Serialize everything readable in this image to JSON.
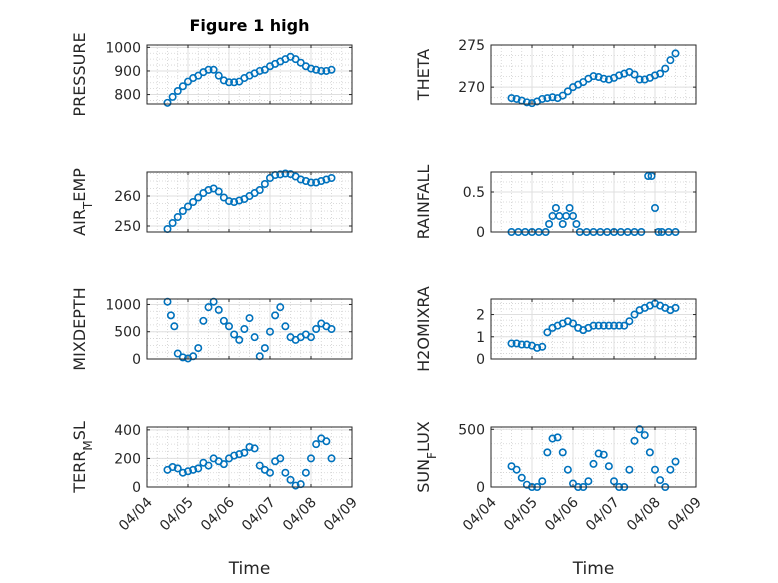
{
  "figure": {
    "title": "Figure 1 high",
    "marker_color": "#0072bd",
    "xlabel": "Time"
  },
  "chart_data": [
    {
      "type": "scatter",
      "title": "Figure 1 high",
      "ylabel": "PRESSURE",
      "xlim": [
        "04/04",
        "04/09"
      ],
      "ylim": [
        760,
        1010
      ],
      "yticks": [
        800,
        900,
        1000
      ],
      "xticks": [
        "04/04",
        "04/05",
        "04/06",
        "04/07",
        "04/08",
        "04/09"
      ],
      "show_xticklabels": false,
      "grid": true,
      "series": [
        {
          "x": [
            "04/04 12:00",
            "04/04 15:00",
            "04/04 18:00",
            "04/04 21:00",
            "04/05 00:00",
            "04/05 03:00",
            "04/05 06:00",
            "04/05 09:00",
            "04/05 12:00",
            "04/05 15:00",
            "04/05 18:00",
            "04/05 21:00",
            "04/06 00:00",
            "04/06 03:00",
            "04/06 06:00",
            "04/06 09:00",
            "04/06 12:00",
            "04/06 15:00",
            "04/06 18:00",
            "04/06 21:00",
            "04/07 00:00",
            "04/07 03:00",
            "04/07 06:00",
            "04/07 09:00",
            "04/07 12:00",
            "04/07 15:00",
            "04/07 18:00",
            "04/07 21:00",
            "04/08 00:00",
            "04/08 03:00",
            "04/08 06:00",
            "04/08 09:00",
            "04/08 12:00"
          ],
          "y": [
            765,
            790,
            815,
            835,
            855,
            870,
            880,
            895,
            905,
            905,
            880,
            860,
            852,
            852,
            855,
            870,
            880,
            890,
            900,
            905,
            920,
            930,
            940,
            950,
            960,
            950,
            935,
            920,
            910,
            905,
            900,
            900,
            905
          ]
        }
      ]
    },
    {
      "type": "scatter",
      "ylabel": "THETA",
      "xlim": [
        "04/04",
        "04/09"
      ],
      "ylim": [
        268,
        275
      ],
      "yticks": [
        270,
        275
      ],
      "xticks": [
        "04/04",
        "04/05",
        "04/06",
        "04/07",
        "04/08",
        "04/09"
      ],
      "show_xticklabels": false,
      "grid": true,
      "series": [
        {
          "x": [
            "04/04 12:00",
            "04/04 15:00",
            "04/04 18:00",
            "04/04 21:00",
            "04/05 00:00",
            "04/05 03:00",
            "04/05 06:00",
            "04/05 09:00",
            "04/05 12:00",
            "04/05 15:00",
            "04/05 18:00",
            "04/05 21:00",
            "04/06 00:00",
            "04/06 03:00",
            "04/06 06:00",
            "04/06 09:00",
            "04/06 12:00",
            "04/06 15:00",
            "04/06 18:00",
            "04/06 21:00",
            "04/07 00:00",
            "04/07 03:00",
            "04/07 06:00",
            "04/07 09:00",
            "04/07 12:00",
            "04/07 15:00",
            "04/07 18:00",
            "04/07 21:00",
            "04/08 00:00",
            "04/08 03:00",
            "04/08 06:00",
            "04/08 09:00",
            "04/08 12:00"
          ],
          "y": [
            268.7,
            268.6,
            268.4,
            268.2,
            268.1,
            268.3,
            268.6,
            268.7,
            268.8,
            268.7,
            269.0,
            269.5,
            270.0,
            270.3,
            270.6,
            271.0,
            271.3,
            271.2,
            271.0,
            270.9,
            271.1,
            271.4,
            271.6,
            271.8,
            271.5,
            270.9,
            270.9,
            271.1,
            271.4,
            271.6,
            272.2,
            273.2,
            274.0
          ]
        }
      ]
    },
    {
      "type": "scatter",
      "ylabel": "AIR_TEMP",
      "xlim": [
        "04/04",
        "04/09"
      ],
      "ylim": [
        248,
        268
      ],
      "yticks": [
        250,
        260
      ],
      "xticks": [
        "04/04",
        "04/05",
        "04/06",
        "04/07",
        "04/08",
        "04/09"
      ],
      "show_xticklabels": false,
      "grid": true,
      "series": [
        {
          "x": [
            "04/04 12:00",
            "04/04 15:00",
            "04/04 18:00",
            "04/04 21:00",
            "04/05 00:00",
            "04/05 03:00",
            "04/05 06:00",
            "04/05 09:00",
            "04/05 12:00",
            "04/05 15:00",
            "04/05 18:00",
            "04/05 21:00",
            "04/06 00:00",
            "04/06 03:00",
            "04/06 06:00",
            "04/06 09:00",
            "04/06 12:00",
            "04/06 15:00",
            "04/06 18:00",
            "04/06 21:00",
            "04/07 00:00",
            "04/07 03:00",
            "04/07 06:00",
            "04/07 09:00",
            "04/07 12:00",
            "04/07 15:00",
            "04/07 18:00",
            "04/07 21:00",
            "04/08 00:00",
            "04/08 03:00",
            "04/08 06:00",
            "04/08 09:00",
            "04/08 12:00"
          ],
          "y": [
            249,
            251,
            253,
            255,
            256.5,
            258,
            259.5,
            261,
            262,
            262.5,
            261.5,
            259.5,
            258.3,
            258,
            258.5,
            259,
            260,
            261,
            262,
            264,
            266,
            267,
            267.2,
            267.5,
            267.3,
            266.5,
            265.5,
            265,
            264.5,
            264.5,
            265,
            265.5,
            266
          ]
        }
      ]
    },
    {
      "type": "scatter",
      "ylabel": "RAINFALL",
      "xlim": [
        "04/04",
        "04/09"
      ],
      "ylim": [
        0,
        0.75
      ],
      "yticks": [
        0,
        0.5
      ],
      "xticks": [
        "04/04",
        "04/05",
        "04/06",
        "04/07",
        "04/08",
        "04/09"
      ],
      "show_xticklabels": false,
      "grid": true,
      "series": [
        {
          "x": [
            "04/04 12:00",
            "04/04 16:00",
            "04/04 20:00",
            "04/05 00:00",
            "04/05 04:00",
            "04/05 08:00",
            "04/05 10:00",
            "04/05 12:00",
            "04/05 14:00",
            "04/05 16:00",
            "04/05 18:00",
            "04/05 20:00",
            "04/05 22:00",
            "04/06 00:00",
            "04/06 02:00",
            "04/06 04:00",
            "04/06 08:00",
            "04/06 12:00",
            "04/06 16:00",
            "04/06 20:00",
            "04/07 00:00",
            "04/07 04:00",
            "04/07 08:00",
            "04/07 12:00",
            "04/07 16:00",
            "04/07 20:00",
            "04/07 22:00",
            "04/08 00:00",
            "04/08 02:00",
            "04/08 04:00",
            "04/08 08:00",
            "04/08 12:00"
          ],
          "y": [
            0,
            0,
            0,
            0,
            0,
            0,
            0.1,
            0.2,
            0.3,
            0.2,
            0.1,
            0.2,
            0.3,
            0.2,
            0.1,
            0,
            0,
            0,
            0,
            0,
            0,
            0,
            0,
            0,
            0,
            0.7,
            0.7,
            0.3,
            0,
            0,
            0,
            0
          ]
        }
      ]
    },
    {
      "type": "scatter",
      "ylabel": "MIXDEPTH",
      "xlim": [
        "04/04",
        "04/09"
      ],
      "ylim": [
        0,
        1100
      ],
      "yticks": [
        0,
        500,
        1000
      ],
      "xticks": [
        "04/04",
        "04/05",
        "04/06",
        "04/07",
        "04/08",
        "04/09"
      ],
      "show_xticklabels": false,
      "grid": true,
      "series": [
        {
          "x": [
            "04/04 12:00",
            "04/04 14:00",
            "04/04 16:00",
            "04/04 18:00",
            "04/04 21:00",
            "04/05 00:00",
            "04/05 03:00",
            "04/05 06:00",
            "04/05 09:00",
            "04/05 12:00",
            "04/05 15:00",
            "04/05 18:00",
            "04/05 21:00",
            "04/06 00:00",
            "04/06 03:00",
            "04/06 06:00",
            "04/06 09:00",
            "04/06 12:00",
            "04/06 15:00",
            "04/06 18:00",
            "04/06 21:00",
            "04/07 00:00",
            "04/07 03:00",
            "04/07 06:00",
            "04/07 09:00",
            "04/07 12:00",
            "04/07 15:00",
            "04/07 18:00",
            "04/07 21:00",
            "04/08 00:00",
            "04/08 03:00",
            "04/08 06:00",
            "04/08 09:00",
            "04/08 12:00"
          ],
          "y": [
            1050,
            800,
            600,
            100,
            30,
            10,
            50,
            200,
            700,
            950,
            1050,
            900,
            700,
            600,
            450,
            350,
            550,
            750,
            400,
            50,
            200,
            500,
            800,
            950,
            600,
            400,
            350,
            400,
            450,
            400,
            550,
            650,
            600,
            550
          ]
        }
      ]
    },
    {
      "type": "scatter",
      "ylabel": "H2OMIXRA",
      "xlim": [
        "04/04",
        "04/09"
      ],
      "ylim": [
        0,
        2.7
      ],
      "yticks": [
        0,
        1,
        2
      ],
      "xticks": [
        "04/04",
        "04/05",
        "04/06",
        "04/07",
        "04/08",
        "04/09"
      ],
      "show_xticklabels": false,
      "grid": true,
      "series": [
        {
          "x": [
            "04/04 12:00",
            "04/04 15:00",
            "04/04 18:00",
            "04/04 21:00",
            "04/05 00:00",
            "04/05 03:00",
            "04/05 06:00",
            "04/05 09:00",
            "04/05 12:00",
            "04/05 15:00",
            "04/05 18:00",
            "04/05 21:00",
            "04/06 00:00",
            "04/06 03:00",
            "04/06 06:00",
            "04/06 09:00",
            "04/06 12:00",
            "04/06 15:00",
            "04/06 18:00",
            "04/06 21:00",
            "04/07 00:00",
            "04/07 03:00",
            "04/07 06:00",
            "04/07 09:00",
            "04/07 12:00",
            "04/07 15:00",
            "04/07 18:00",
            "04/07 21:00",
            "04/08 00:00",
            "04/08 03:00",
            "04/08 06:00",
            "04/08 09:00",
            "04/08 12:00"
          ],
          "y": [
            0.7,
            0.7,
            0.65,
            0.65,
            0.6,
            0.5,
            0.55,
            1.2,
            1.4,
            1.5,
            1.6,
            1.7,
            1.6,
            1.4,
            1.3,
            1.4,
            1.5,
            1.5,
            1.5,
            1.5,
            1.5,
            1.5,
            1.5,
            1.7,
            2.0,
            2.2,
            2.3,
            2.4,
            2.5,
            2.4,
            2.3,
            2.2,
            2.3
          ]
        }
      ]
    },
    {
      "type": "scatter",
      "ylabel": "TERR_MSL",
      "xlim": [
        "04/04",
        "04/09"
      ],
      "ylim": [
        0,
        420
      ],
      "yticks": [
        0,
        200,
        400
      ],
      "xticks": [
        "04/04",
        "04/05",
        "04/06",
        "04/07",
        "04/08",
        "04/09"
      ],
      "show_xticklabels": true,
      "grid": true,
      "series": [
        {
          "x": [
            "04/04 12:00",
            "04/04 15:00",
            "04/04 18:00",
            "04/04 21:00",
            "04/05 00:00",
            "04/05 03:00",
            "04/05 06:00",
            "04/05 09:00",
            "04/05 12:00",
            "04/05 15:00",
            "04/05 18:00",
            "04/05 21:00",
            "04/06 00:00",
            "04/06 03:00",
            "04/06 06:00",
            "04/06 09:00",
            "04/06 12:00",
            "04/06 15:00",
            "04/06 18:00",
            "04/06 21:00",
            "04/07 00:00",
            "04/07 03:00",
            "04/07 06:00",
            "04/07 09:00",
            "04/07 12:00",
            "04/07 15:00",
            "04/07 18:00",
            "04/07 21:00",
            "04/08 00:00",
            "04/08 03:00",
            "04/08 06:00",
            "04/08 09:00",
            "04/08 12:00"
          ],
          "y": [
            120,
            140,
            130,
            100,
            110,
            120,
            130,
            170,
            150,
            200,
            180,
            160,
            200,
            220,
            230,
            240,
            280,
            270,
            150,
            120,
            100,
            180,
            200,
            100,
            50,
            10,
            20,
            100,
            200,
            300,
            340,
            320,
            200
          ]
        }
      ]
    },
    {
      "type": "scatter",
      "ylabel": "SUN_FLUX",
      "xlim": [
        "04/04",
        "04/09"
      ],
      "ylim": [
        0,
        520
      ],
      "yticks": [
        0,
        500
      ],
      "xticks": [
        "04/04",
        "04/05",
        "04/06",
        "04/07",
        "04/08",
        "04/09"
      ],
      "show_xticklabels": true,
      "grid": true,
      "series": [
        {
          "x": [
            "04/04 12:00",
            "04/04 15:00",
            "04/04 18:00",
            "04/04 21:00",
            "04/05 00:00",
            "04/05 03:00",
            "04/05 06:00",
            "04/05 09:00",
            "04/05 12:00",
            "04/05 15:00",
            "04/05 18:00",
            "04/05 21:00",
            "04/06 00:00",
            "04/06 03:00",
            "04/06 06:00",
            "04/06 09:00",
            "04/06 12:00",
            "04/06 15:00",
            "04/06 18:00",
            "04/06 21:00",
            "04/07 00:00",
            "04/07 03:00",
            "04/07 06:00",
            "04/07 09:00",
            "04/07 12:00",
            "04/07 15:00",
            "04/07 18:00",
            "04/07 21:00",
            "04/08 00:00",
            "04/08 03:00",
            "04/08 06:00",
            "04/08 09:00",
            "04/08 12:00"
          ],
          "y": [
            180,
            150,
            80,
            20,
            0,
            0,
            50,
            300,
            420,
            430,
            300,
            150,
            30,
            0,
            0,
            50,
            200,
            290,
            280,
            180,
            50,
            0,
            0,
            150,
            400,
            500,
            450,
            300,
            150,
            60,
            0,
            150,
            220
          ]
        }
      ]
    }
  ]
}
